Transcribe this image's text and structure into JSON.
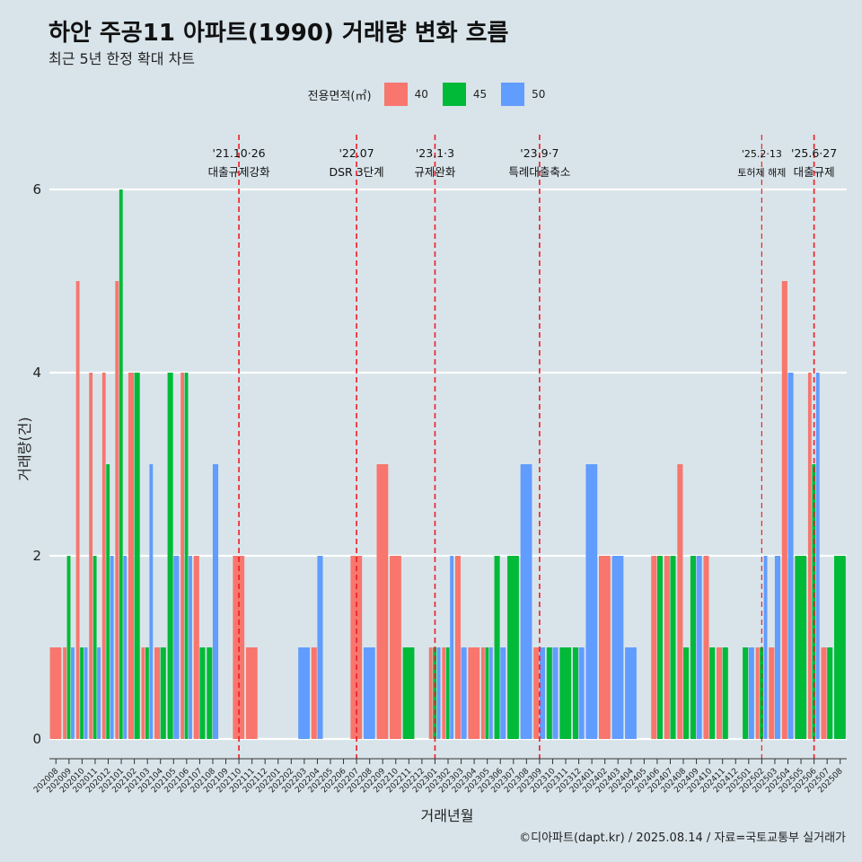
{
  "title": "하안 주공11 아파트(1990) 거래량 변화 흐름",
  "subtitle": "최근 5년 한정 확대 차트",
  "caption": "©디아파트(dapt.kr) / 2025.08.14 / 자료=국토교통부 실거래가",
  "legend": {
    "title": "전용면적(㎡)",
    "items": [
      {
        "label": "40",
        "color": "#F8766D"
      },
      {
        "label": "45",
        "color": "#00BA38"
      },
      {
        "label": "50",
        "color": "#619CFF"
      }
    ]
  },
  "chart_data": {
    "type": "bar",
    "xlabel": "거래년월",
    "ylabel": "거래량(건)",
    "ylim": [
      0,
      6.5
    ],
    "yticks": [
      0,
      2,
      4,
      6
    ],
    "grid": true,
    "legend_position": "top",
    "categories": [
      "202008",
      "202009",
      "202010",
      "202011",
      "202012",
      "202101",
      "202102",
      "202103",
      "202104",
      "202105",
      "202106",
      "202107",
      "202108",
      "202109",
      "202110",
      "202111",
      "202112",
      "202201",
      "202202",
      "202203",
      "202204",
      "202205",
      "202206",
      "202207",
      "202208",
      "202209",
      "202210",
      "202211",
      "202212",
      "202301",
      "202302",
      "202303",
      "202304",
      "202305",
      "202306",
      "202307",
      "202308",
      "202309",
      "202310",
      "202311",
      "202312",
      "202401",
      "202402",
      "202403",
      "202404",
      "202405",
      "202406",
      "202407",
      "202408",
      "202409",
      "202410",
      "202411",
      "202412",
      "202501",
      "202502",
      "202503",
      "202504",
      "202505",
      "202506",
      "202507",
      "202508"
    ],
    "series": [
      {
        "name": "40",
        "color": "#F8766D",
        "values": [
          1,
          1,
          5,
          4,
          4,
          5,
          4,
          1,
          1,
          null,
          4,
          2,
          null,
          null,
          2,
          1,
          null,
          null,
          null,
          null,
          1,
          null,
          null,
          2,
          null,
          3,
          2,
          null,
          null,
          1,
          1,
          2,
          1,
          1,
          null,
          null,
          null,
          1,
          null,
          null,
          null,
          null,
          2,
          null,
          null,
          null,
          2,
          2,
          3,
          null,
          2,
          1,
          null,
          null,
          1,
          1,
          5,
          null,
          4,
          1,
          null
        ]
      },
      {
        "name": "45",
        "color": "#00BA38",
        "values": [
          null,
          2,
          1,
          2,
          3,
          6,
          4,
          1,
          1,
          4,
          4,
          1,
          1,
          null,
          null,
          null,
          null,
          null,
          null,
          null,
          null,
          null,
          null,
          null,
          null,
          null,
          null,
          1,
          null,
          1,
          1,
          null,
          null,
          1,
          2,
          2,
          null,
          null,
          1,
          1,
          1,
          null,
          null,
          null,
          null,
          null,
          2,
          2,
          1,
          2,
          1,
          1,
          null,
          1,
          1,
          null,
          null,
          2,
          3,
          1,
          2
        ]
      },
      {
        "name": "50",
        "color": "#619CFF",
        "values": [
          null,
          1,
          1,
          1,
          2,
          2,
          null,
          3,
          null,
          2,
          2,
          null,
          3,
          null,
          null,
          null,
          null,
          null,
          null,
          1,
          2,
          null,
          null,
          null,
          1,
          null,
          null,
          null,
          null,
          1,
          2,
          1,
          null,
          1,
          1,
          null,
          3,
          1,
          1,
          null,
          1,
          3,
          null,
          2,
          1,
          null,
          null,
          null,
          null,
          2,
          null,
          null,
          null,
          1,
          2,
          2,
          4,
          null,
          4,
          null,
          null
        ]
      }
    ],
    "events": [
      {
        "month": "202110",
        "line1": "'21.10·26",
        "line2": "대출규제강화"
      },
      {
        "month": "202207",
        "line1": "'22.07",
        "line2": "DSR 3단계"
      },
      {
        "month": "202301",
        "line1": "'23.1·3",
        "line2": "규제완화"
      },
      {
        "month": "202309",
        "line1": "'23.9·7",
        "line2": "특례대출축소"
      },
      {
        "month": "202502",
        "line1": "'25.2·13",
        "line2": "토허제 해제",
        "small": true
      },
      {
        "month": "202506",
        "line1": "'25.6·27",
        "line2": "대출규제"
      }
    ]
  }
}
